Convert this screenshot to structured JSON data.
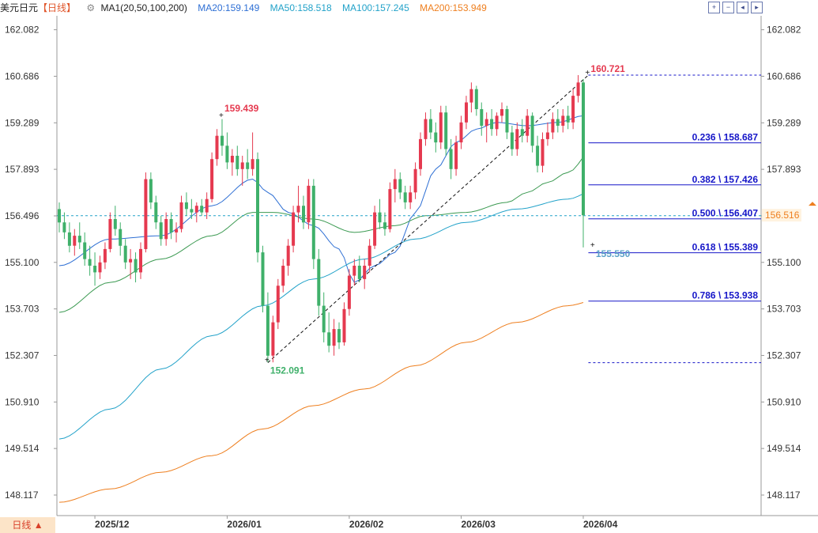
{
  "header": {
    "title": "美元日元",
    "period": "【日线】",
    "gear_icon": "⚙",
    "ma1": "MA1(20,50,100,200)",
    "ma20": "MA20:159.149",
    "ma50": "MA50:158.518",
    "ma100": "MA100:157.245",
    "ma200": "MA200:153.949"
  },
  "toolbar": {
    "icons": [
      "zoom-in-icon",
      "zoom-out-icon",
      "pan-left-icon",
      "pan-right-icon"
    ],
    "glyphs": [
      "+",
      "−",
      "◂",
      "▸"
    ]
  },
  "period_button": "日线 ▲",
  "colors": {
    "up": "#e5394f",
    "down": "#3fb06a",
    "ma20": "#2e6fd4",
    "ma50": "#3c9a52",
    "ma100": "#22a2c9",
    "ma200": "#ee7f1f",
    "fib": "#1616c8"
  },
  "chart_data": {
    "type": "candlestick",
    "symbol": "美元日元",
    "period": "日线",
    "ylim": [
      147.5,
      162.5
    ],
    "y_ticks": [
      "162.082",
      "160.686",
      "159.289",
      "157.893",
      "156.496",
      "155.100",
      "153.703",
      "152.307",
      "150.910",
      "149.514",
      "148.117"
    ],
    "x_labels": [
      {
        "label": "2025/12",
        "index": 7
      },
      {
        "label": "2026/01",
        "index": 33
      },
      {
        "label": "2026/02",
        "index": 57
      },
      {
        "label": "2026/03",
        "index": 79
      },
      {
        "label": "2026/04",
        "index": 103
      }
    ],
    "ohlc": [
      [
        156.7,
        156.9,
        156.0,
        156.3
      ],
      [
        156.3,
        156.6,
        155.8,
        156.0
      ],
      [
        156.0,
        156.3,
        155.4,
        155.6
      ],
      [
        155.6,
        156.1,
        155.3,
        155.9
      ],
      [
        155.9,
        156.3,
        155.5,
        155.7
      ],
      [
        155.7,
        156.0,
        155.0,
        155.2
      ],
      [
        155.2,
        155.6,
        154.7,
        155.0
      ],
      [
        155.0,
        155.4,
        154.4,
        154.8
      ],
      [
        154.8,
        155.3,
        154.6,
        155.1
      ],
      [
        155.1,
        155.7,
        154.9,
        155.5
      ],
      [
        155.5,
        156.6,
        155.4,
        156.4
      ],
      [
        156.4,
        156.8,
        155.9,
        156.1
      ],
      [
        156.1,
        156.3,
        155.3,
        155.6
      ],
      [
        155.6,
        155.8,
        154.9,
        155.1
      ],
      [
        155.1,
        155.5,
        154.6,
        155.2
      ],
      [
        155.2,
        155.4,
        154.5,
        154.8
      ],
      [
        154.8,
        155.7,
        154.6,
        155.5
      ],
      [
        155.5,
        157.8,
        155.4,
        157.6
      ],
      [
        157.6,
        157.8,
        156.7,
        156.9
      ],
      [
        156.9,
        157.1,
        156.1,
        156.3
      ],
      [
        156.3,
        156.5,
        155.6,
        155.8
      ],
      [
        155.8,
        156.6,
        155.6,
        156.4
      ],
      [
        156.4,
        156.6,
        155.8,
        156.0
      ],
      [
        156.0,
        156.3,
        155.7,
        156.1
      ],
      [
        156.1,
        157.1,
        156.0,
        156.9
      ],
      [
        156.9,
        157.2,
        156.5,
        156.7
      ],
      [
        156.7,
        157.0,
        156.4,
        156.6
      ],
      [
        156.6,
        156.9,
        156.3,
        156.8
      ],
      [
        156.8,
        157.0,
        156.5,
        156.6
      ],
      [
        156.6,
        157.2,
        156.4,
        157.0
      ],
      [
        157.0,
        158.4,
        156.9,
        158.2
      ],
      [
        158.2,
        159.1,
        158.0,
        158.9
      ],
      [
        158.9,
        159.4,
        158.3,
        158.6
      ],
      [
        158.6,
        159.0,
        157.9,
        158.1
      ],
      [
        158.1,
        158.5,
        157.7,
        158.3
      ],
      [
        158.3,
        158.6,
        157.7,
        157.9
      ],
      [
        157.9,
        158.3,
        157.4,
        158.1
      ],
      [
        158.1,
        158.5,
        157.6,
        157.9
      ],
      [
        157.9,
        159.0,
        157.7,
        158.2
      ],
      [
        158.2,
        158.4,
        155.1,
        155.4
      ],
      [
        155.4,
        155.6,
        153.6,
        153.8
      ],
      [
        153.8,
        154.2,
        152.1,
        152.3
      ],
      [
        152.3,
        153.5,
        152.1,
        153.3
      ],
      [
        153.3,
        154.6,
        153.1,
        154.4
      ],
      [
        154.4,
        155.2,
        154.2,
        155.0
      ],
      [
        155.0,
        155.8,
        154.7,
        155.6
      ],
      [
        155.6,
        156.8,
        155.4,
        156.6
      ],
      [
        156.6,
        157.4,
        156.3,
        156.8
      ],
      [
        156.8,
        157.1,
        156.1,
        156.3
      ],
      [
        156.3,
        157.6,
        156.1,
        157.4
      ],
      [
        157.4,
        157.6,
        154.9,
        155.2
      ],
      [
        155.2,
        155.5,
        153.5,
        153.8
      ],
      [
        153.8,
        154.2,
        152.7,
        153.0
      ],
      [
        153.0,
        153.6,
        152.4,
        152.6
      ],
      [
        152.6,
        153.4,
        152.3,
        153.1
      ],
      [
        153.1,
        153.3,
        152.5,
        152.7
      ],
      [
        152.7,
        153.9,
        152.6,
        153.7
      ],
      [
        153.7,
        154.9,
        153.5,
        154.7
      ],
      [
        154.7,
        155.2,
        154.4,
        155.0
      ],
      [
        155.0,
        155.3,
        154.5,
        154.6
      ],
      [
        154.6,
        155.2,
        154.3,
        155.0
      ],
      [
        155.0,
        155.8,
        154.8,
        155.6
      ],
      [
        155.6,
        156.8,
        155.5,
        156.6
      ],
      [
        156.6,
        157.0,
        156.1,
        156.3
      ],
      [
        156.3,
        156.6,
        155.9,
        156.1
      ],
      [
        156.1,
        157.5,
        156.0,
        157.3
      ],
      [
        157.3,
        157.9,
        156.9,
        157.6
      ],
      [
        157.6,
        157.8,
        157.0,
        157.2
      ],
      [
        157.2,
        157.4,
        156.7,
        156.9
      ],
      [
        156.9,
        157.4,
        156.7,
        157.2
      ],
      [
        157.2,
        158.1,
        157.0,
        157.9
      ],
      [
        157.9,
        159.0,
        157.7,
        158.8
      ],
      [
        158.8,
        159.6,
        158.6,
        159.4
      ],
      [
        159.4,
        159.7,
        158.8,
        159.0
      ],
      [
        159.0,
        159.3,
        158.4,
        158.7
      ],
      [
        158.7,
        159.8,
        158.5,
        159.6
      ],
      [
        159.6,
        159.8,
        158.3,
        158.5
      ],
      [
        158.5,
        158.8,
        157.6,
        157.9
      ],
      [
        157.9,
        158.9,
        157.7,
        158.7
      ],
      [
        158.7,
        159.5,
        158.5,
        159.3
      ],
      [
        159.3,
        160.1,
        159.1,
        159.9
      ],
      [
        159.9,
        160.5,
        159.6,
        160.3
      ],
      [
        160.3,
        160.4,
        159.5,
        159.7
      ],
      [
        159.7,
        159.9,
        158.9,
        159.2
      ],
      [
        159.2,
        159.6,
        158.7,
        159.4
      ],
      [
        159.4,
        159.7,
        158.9,
        159.1
      ],
      [
        159.1,
        159.6,
        158.9,
        159.5
      ],
      [
        159.5,
        159.9,
        159.3,
        159.7
      ],
      [
        159.7,
        159.8,
        158.8,
        159.0
      ],
      [
        159.0,
        159.2,
        158.3,
        158.5
      ],
      [
        158.5,
        159.3,
        158.3,
        159.1
      ],
      [
        159.1,
        159.4,
        158.7,
        158.9
      ],
      [
        158.9,
        159.7,
        158.7,
        159.5
      ],
      [
        159.5,
        159.6,
        158.4,
        158.6
      ],
      [
        158.6,
        158.9,
        157.8,
        158.0
      ],
      [
        158.0,
        159.0,
        157.8,
        158.8
      ],
      [
        158.8,
        159.3,
        158.6,
        159.0
      ],
      [
        159.0,
        159.6,
        158.8,
        159.4
      ],
      [
        159.4,
        159.7,
        159.0,
        159.2
      ],
      [
        159.2,
        159.7,
        159.0,
        159.5
      ],
      [
        159.5,
        159.8,
        159.1,
        159.3
      ],
      [
        159.3,
        160.3,
        159.1,
        160.1
      ],
      [
        160.1,
        160.721,
        159.9,
        160.5
      ],
      [
        160.5,
        160.6,
        155.55,
        156.516
      ]
    ],
    "ma_series": [
      {
        "name": "MA20",
        "anchors": [
          [
            0,
            155.0
          ],
          [
            10,
            155.8
          ],
          [
            20,
            155.9
          ],
          [
            30,
            156.8
          ],
          [
            38,
            157.6
          ],
          [
            41,
            157.2
          ],
          [
            45,
            156.6
          ],
          [
            50,
            156.2
          ],
          [
            55,
            155.5
          ],
          [
            58,
            154.5
          ],
          [
            62,
            155.0
          ],
          [
            66,
            155.4
          ],
          [
            70,
            156.6
          ],
          [
            74,
            157.9
          ],
          [
            78,
            158.7
          ],
          [
            82,
            159.1
          ],
          [
            86,
            159.3
          ],
          [
            92,
            159.2
          ],
          [
            98,
            159.3
          ],
          [
            103,
            159.5
          ],
          [
            105,
            159.149
          ]
        ]
      },
      {
        "name": "MA50",
        "anchors": [
          [
            0,
            153.6
          ],
          [
            10,
            154.5
          ],
          [
            20,
            155.2
          ],
          [
            30,
            155.9
          ],
          [
            38,
            156.6
          ],
          [
            42,
            156.6
          ],
          [
            50,
            156.4
          ],
          [
            58,
            156.0
          ],
          [
            66,
            156.2
          ],
          [
            72,
            156.5
          ],
          [
            80,
            156.6
          ],
          [
            88,
            156.9
          ],
          [
            92,
            157.2
          ],
          [
            96,
            157.5
          ],
          [
            100,
            157.8
          ],
          [
            105,
            158.518
          ]
        ]
      },
      {
        "name": "MA100",
        "anchors": [
          [
            0,
            149.8
          ],
          [
            10,
            150.7
          ],
          [
            20,
            151.9
          ],
          [
            30,
            152.9
          ],
          [
            40,
            153.8
          ],
          [
            50,
            154.6
          ],
          [
            60,
            155.2
          ],
          [
            70,
            155.8
          ],
          [
            80,
            156.3
          ],
          [
            90,
            156.7
          ],
          [
            100,
            157.0
          ],
          [
            105,
            157.245
          ]
        ]
      },
      {
        "name": "MA200",
        "anchors": [
          [
            0,
            147.9
          ],
          [
            10,
            148.3
          ],
          [
            20,
            148.8
          ],
          [
            30,
            149.3
          ],
          [
            40,
            150.1
          ],
          [
            50,
            150.8
          ],
          [
            60,
            151.3
          ],
          [
            70,
            152.0
          ],
          [
            80,
            152.7
          ],
          [
            90,
            153.3
          ],
          [
            100,
            153.8
          ],
          [
            105,
            153.949
          ]
        ]
      }
    ],
    "annotations": {
      "peak_label": {
        "text": "159.439",
        "index": 32,
        "price": 159.439
      },
      "high_label": {
        "text": "160.721",
        "index": 104,
        "price": 160.721
      },
      "low_label": {
        "text": "152.091",
        "index": 41,
        "price": 152.091
      },
      "recent_low_label": {
        "text": "155.550",
        "index": 105,
        "price": 155.55
      },
      "current_price": "156.516",
      "dashed_reference_price": 156.5
    },
    "fibonacci": {
      "from": {
        "index": 41,
        "price": 152.091
      },
      "to": {
        "index": 104,
        "price": 160.721
      },
      "levels": [
        {
          "label": "0.236 \\ 158.687",
          "price": 158.687
        },
        {
          "label": "0.382 \\ 157.426",
          "price": 157.426
        },
        {
          "label": "0.500 \\ 156.407",
          "price": 156.407
        },
        {
          "label": "0.618 \\ 155.389",
          "price": 155.389
        },
        {
          "label": "0.786 \\ 153.938",
          "price": 153.938
        }
      ]
    }
  }
}
